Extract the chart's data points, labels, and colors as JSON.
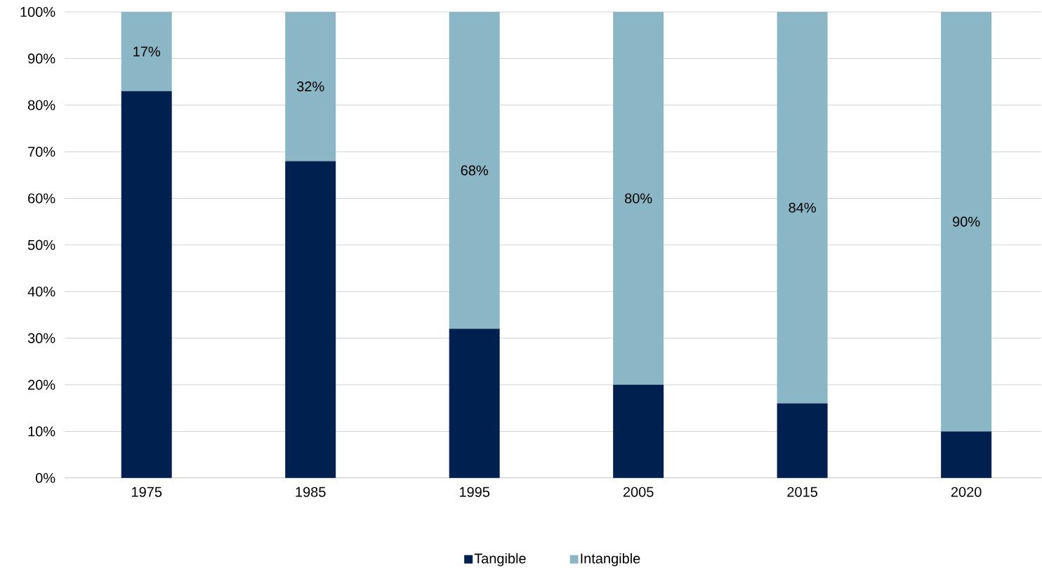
{
  "chart_data": {
    "type": "bar",
    "stacked": true,
    "categories": [
      "1975",
      "1985",
      "1995",
      "2005",
      "2015",
      "2020"
    ],
    "series": [
      {
        "name": "Tangible",
        "color": "#002050",
        "values": [
          83,
          68,
          32,
          20,
          16,
          10
        ]
      },
      {
        "name": "Intangible",
        "color": "#8bb6c5",
        "values": [
          17,
          32,
          68,
          80,
          84,
          90
        ],
        "value_labels": [
          "17%",
          "32%",
          "68%",
          "80%",
          "84%",
          "90%"
        ]
      }
    ],
    "ylim": [
      0,
      100
    ],
    "yticks": [
      {
        "value": 0,
        "label": "0%"
      },
      {
        "value": 10,
        "label": "10%"
      },
      {
        "value": 20,
        "label": "20%"
      },
      {
        "value": 30,
        "label": "30%"
      },
      {
        "value": 40,
        "label": "40%"
      },
      {
        "value": 50,
        "label": "50%"
      },
      {
        "value": 60,
        "label": "60%"
      },
      {
        "value": 70,
        "label": "70%"
      },
      {
        "value": 80,
        "label": "80%"
      },
      {
        "value": 90,
        "label": "90%"
      },
      {
        "value": 100,
        "label": "100%"
      }
    ],
    "grid": "y",
    "legend": "bottom"
  }
}
